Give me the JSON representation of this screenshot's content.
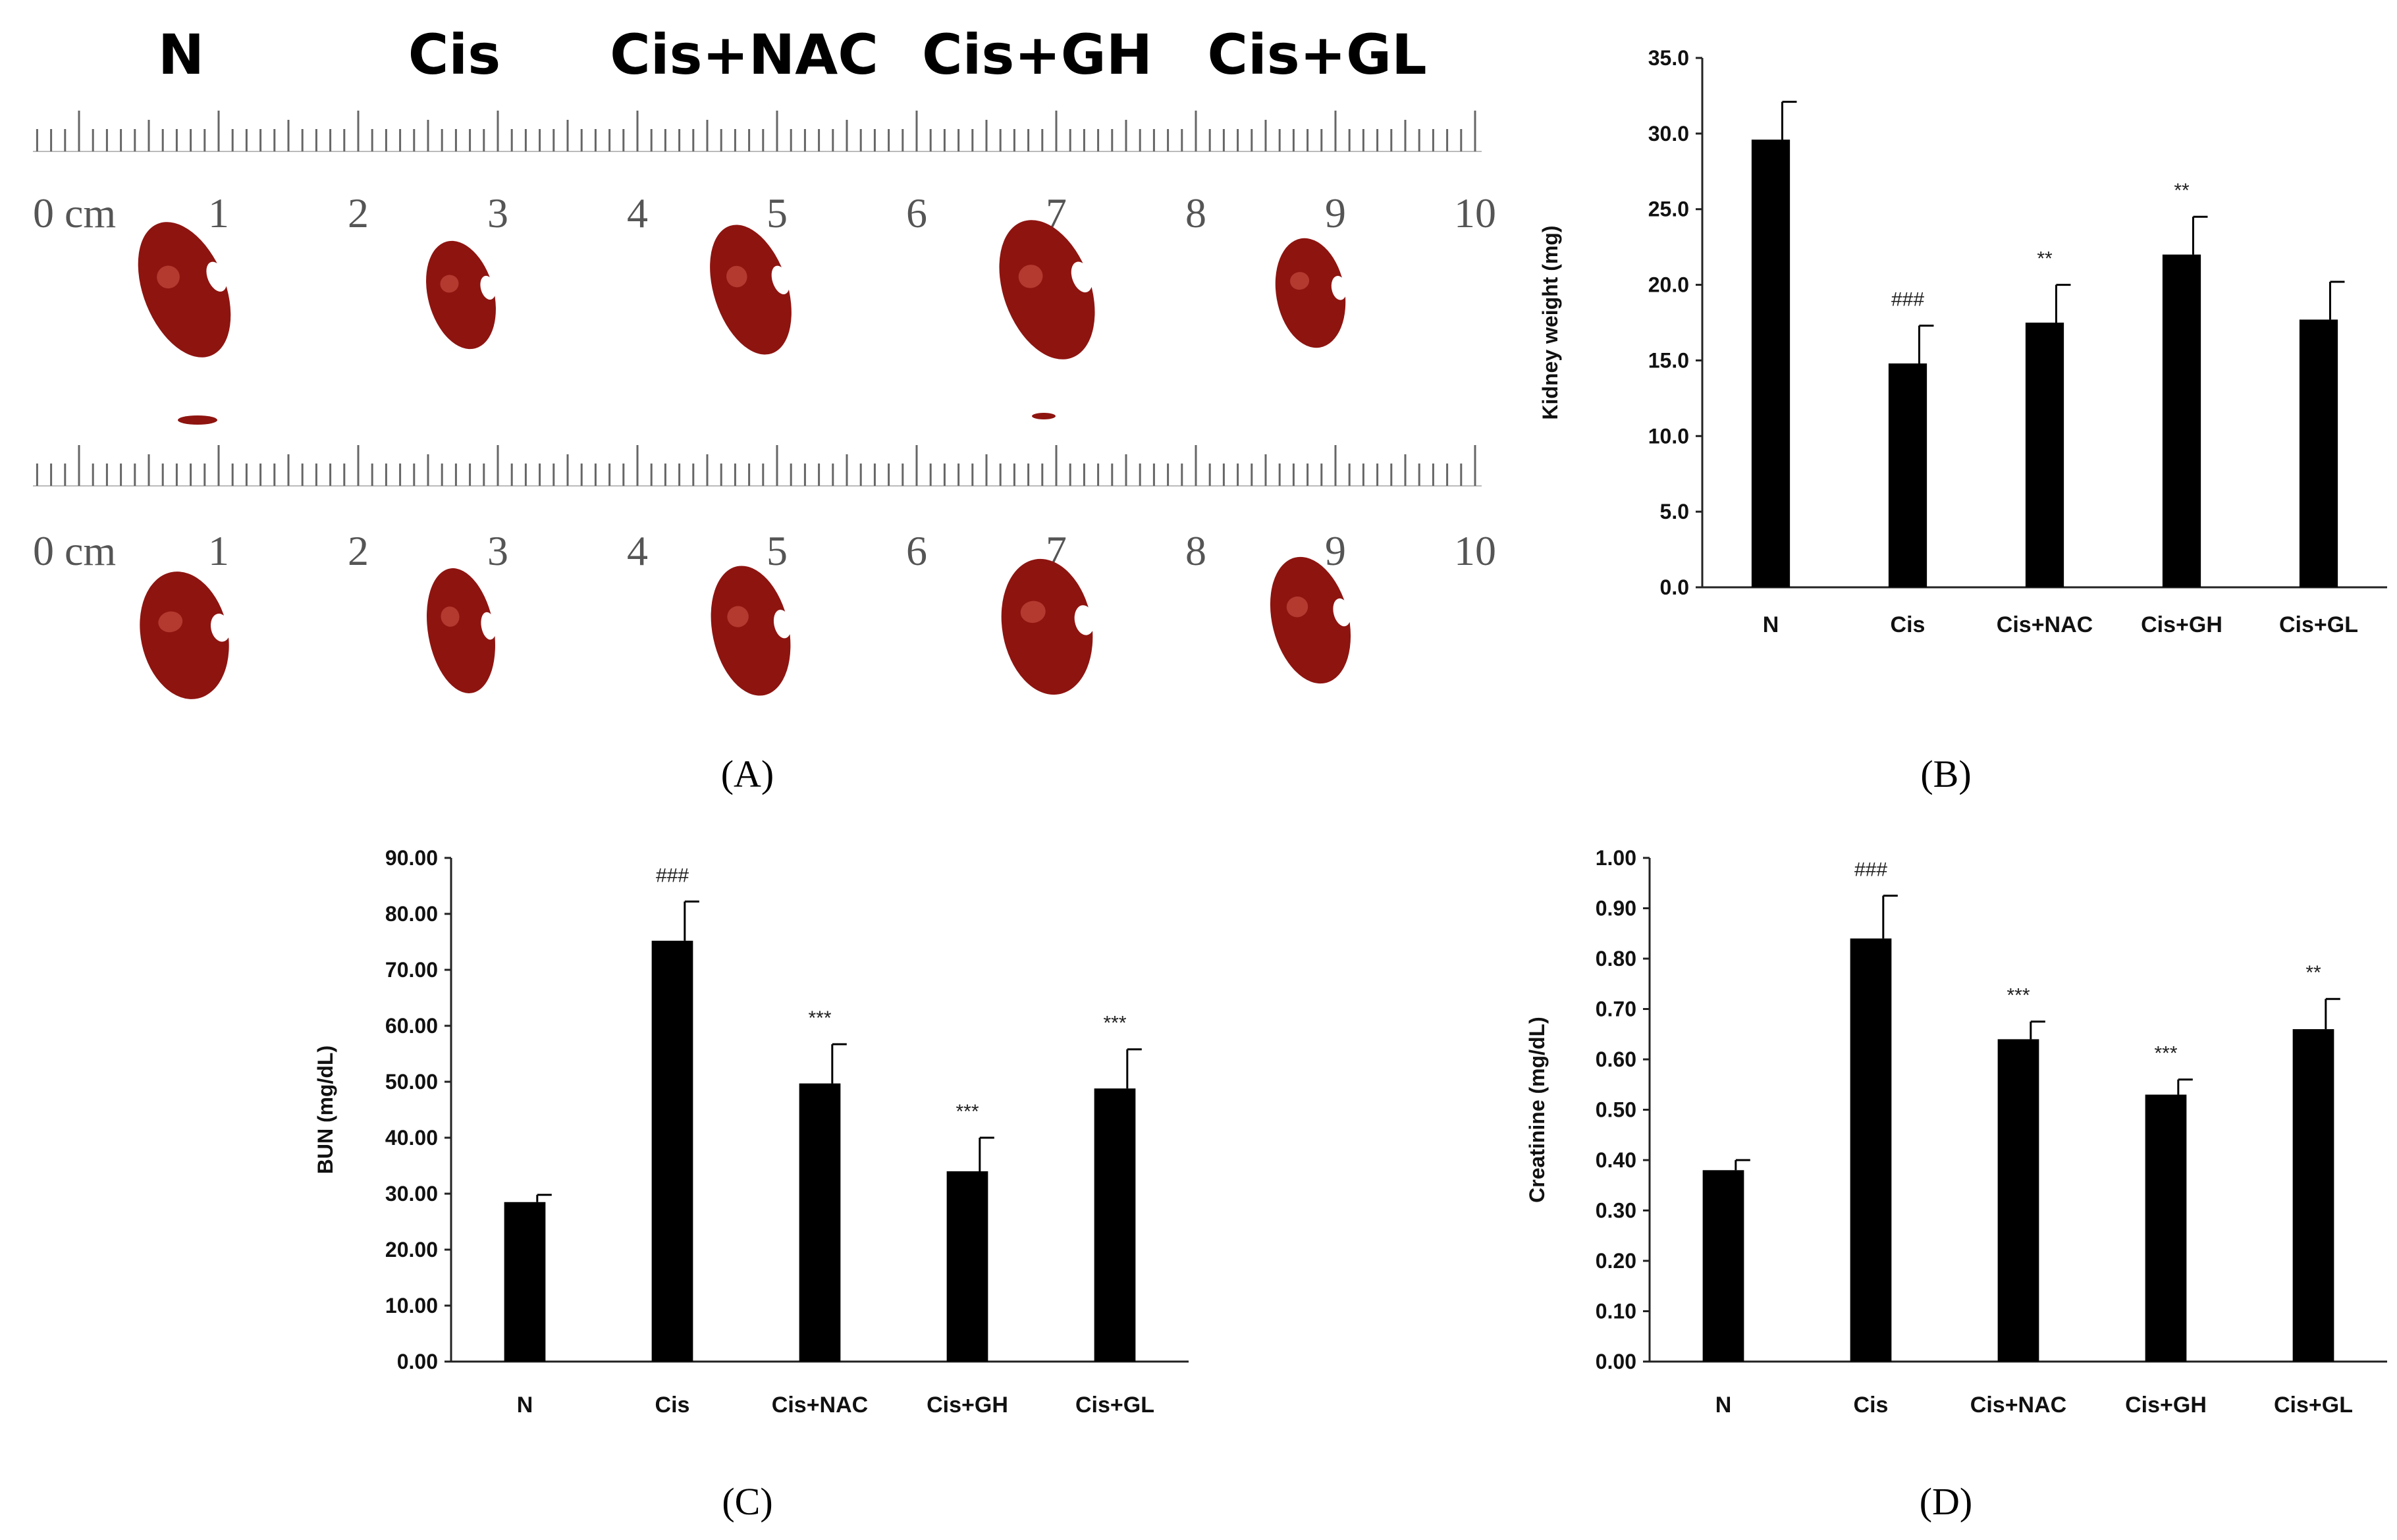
{
  "panels": [
    {
      "id": "A",
      "letter_text": "(A)"
    },
    {
      "id": "B",
      "letter_text": "(B)"
    },
    {
      "id": "C",
      "letter_text": "(C)"
    },
    {
      "id": "D",
      "letter_text": "(D)"
    }
  ],
  "photo": {
    "group_labels": [
      "N",
      "Cis",
      "Cis+NAC",
      "Cis+GH",
      "Cis+GL"
    ],
    "ruler_numbers": [
      "0 cm",
      "1",
      "2",
      "3",
      "4",
      "5",
      "6",
      "7",
      "8",
      "9",
      "10"
    ],
    "colors": {
      "kidney": "#8e1410",
      "kidney_highlight": "#d45a4a",
      "ruler_tick": "#666666"
    }
  },
  "chart_data": [
    {
      "panel": "B",
      "type": "bar",
      "title": "",
      "xlabel": "",
      "ylabel": "Kidney weight (mg)",
      "categories": [
        "N",
        "Cis",
        "Cis+NAC",
        "Cis+GH",
        "Cis+GL"
      ],
      "values": [
        29.6,
        14.8,
        17.5,
        22.0,
        17.7
      ],
      "errors": [
        2.5,
        2.5,
        2.5,
        2.5,
        2.5
      ],
      "annotations": [
        "",
        "###",
        "**",
        "**",
        ""
      ],
      "ylim": [
        0,
        35
      ],
      "yticks": [
        "0.0",
        "5.0",
        "10.0",
        "15.0",
        "20.0",
        "25.0",
        "30.0",
        "35.0"
      ],
      "tick_values": [
        0,
        5,
        10,
        15,
        20,
        25,
        30,
        35
      ]
    },
    {
      "panel": "C",
      "type": "bar",
      "title": "",
      "xlabel": "",
      "ylabel": "BUN (mg/dL)",
      "categories": [
        "N",
        "Cis",
        "Cis+NAC",
        "Cis+GH",
        "Cis+GL"
      ],
      "values": [
        28.5,
        75.2,
        49.7,
        34.0,
        48.8
      ],
      "errors": [
        1.3,
        7.0,
        7.0,
        6.0,
        7.0
      ],
      "annotations": [
        "",
        "###",
        "***",
        "***",
        "***"
      ],
      "ylim": [
        0,
        90
      ],
      "yticks": [
        "0.00",
        "10.00",
        "20.00",
        "30.00",
        "40.00",
        "50.00",
        "60.00",
        "70.00",
        "80.00",
        "90.00"
      ],
      "tick_values": [
        0,
        10,
        20,
        30,
        40,
        50,
        60,
        70,
        80,
        90
      ]
    },
    {
      "panel": "D",
      "type": "bar",
      "title": "",
      "xlabel": "",
      "ylabel": "Creatinine (mg/dL)",
      "categories": [
        "N",
        "Cis",
        "Cis+NAC",
        "Cis+GH",
        "Cis+GL"
      ],
      "values": [
        0.38,
        0.84,
        0.64,
        0.53,
        0.66
      ],
      "errors": [
        0.02,
        0.085,
        0.035,
        0.03,
        0.06
      ],
      "annotations": [
        "",
        "###",
        "***",
        "***",
        "**"
      ],
      "ylim": [
        0,
        1.0
      ],
      "yticks": [
        "0.00",
        "0.10",
        "0.20",
        "0.30",
        "0.40",
        "0.50",
        "0.60",
        "0.70",
        "0.80",
        "0.90",
        "1.00"
      ],
      "tick_values": [
        0,
        0.1,
        0.2,
        0.3,
        0.4,
        0.5,
        0.6,
        0.7,
        0.8,
        0.9,
        1.0
      ]
    }
  ]
}
